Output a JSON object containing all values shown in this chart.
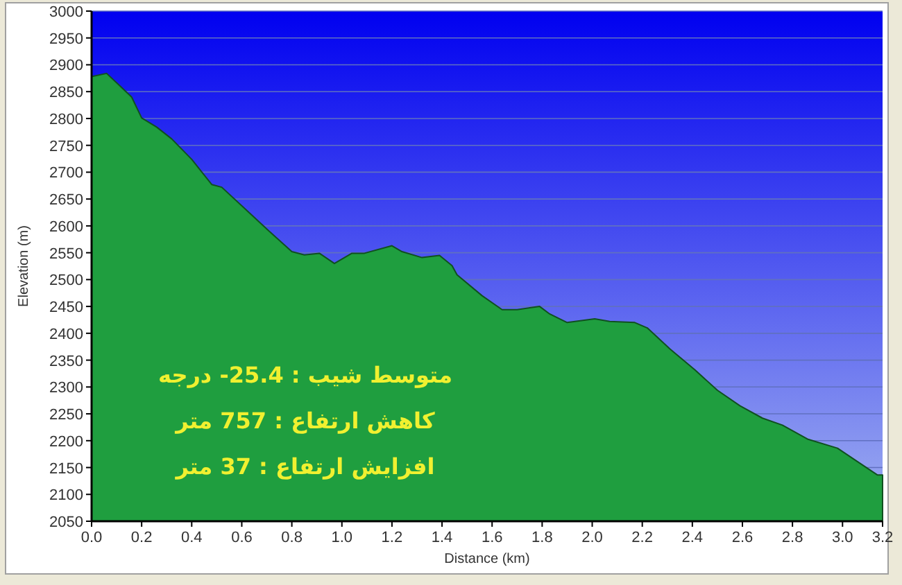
{
  "chart_data": {
    "type": "area",
    "xlabel": "Distance  (km)",
    "ylabel": "Elevation (m)",
    "annotations": [
      "متوسط شیب : 25.4- درجه",
      "کاهش ارتفاع : 757 متر",
      "افزایش ارتفاع :  37 متر"
    ],
    "xlim": [
      0,
      3.16
    ],
    "xticks": [
      {
        "value": 0,
        "label": "0.0"
      },
      0.2,
      0.4,
      0.6,
      0.8,
      {
        "value": 1,
        "label": "1.0"
      },
      1.2,
      1.4,
      1.6,
      1.8,
      {
        "value": 2,
        "label": "2.0"
      },
      2.2,
      2.4,
      2.6,
      2.8,
      {
        "value": 3,
        "label": "3.0"
      },
      {
        "value": 3.16,
        "label": "3.2"
      }
    ],
    "ylim": [
      2050,
      3000
    ],
    "yticks": [
      2050,
      2100,
      2150,
      2200,
      2250,
      2300,
      2350,
      2400,
      2450,
      2500,
      2550,
      2600,
      2650,
      2700,
      2750,
      2800,
      2850,
      2900,
      2950,
      3000
    ],
    "grid": "y",
    "series": [
      {
        "color": "#1f9e3f",
        "x": [
          0,
          0.06,
          0.115,
          0.16,
          0.2,
          0.26,
          0.32,
          0.4,
          0.48,
          0.52,
          0.61,
          0.71,
          0.8,
          0.85,
          0.91,
          0.97,
          1.04,
          1.09,
          1.2,
          1.24,
          1.32,
          1.39,
          1.44,
          1.46,
          1.56,
          1.64,
          1.7,
          1.79,
          1.83,
          1.9,
          2.01,
          2.07,
          2.17,
          2.22,
          2.31,
          2.41,
          2.5,
          2.59,
          2.68,
          2.76,
          2.86,
          2.98,
          3.05,
          3.14,
          3.16
        ],
        "values": [
          2878,
          2884,
          2860,
          2840,
          2801,
          2784,
          2762,
          2724,
          2677,
          2672,
          2633,
          2590,
          2552,
          2546,
          2549,
          2530,
          2549,
          2549,
          2563,
          2552,
          2541,
          2545,
          2526,
          2509,
          2470,
          2444,
          2444,
          2450,
          2436,
          2420,
          2427,
          2422,
          2420,
          2410,
          2371,
          2332,
          2294,
          2265,
          2242,
          2229,
          2203,
          2186,
          2164,
          2136,
          2136
        ]
      }
    ]
  }
}
